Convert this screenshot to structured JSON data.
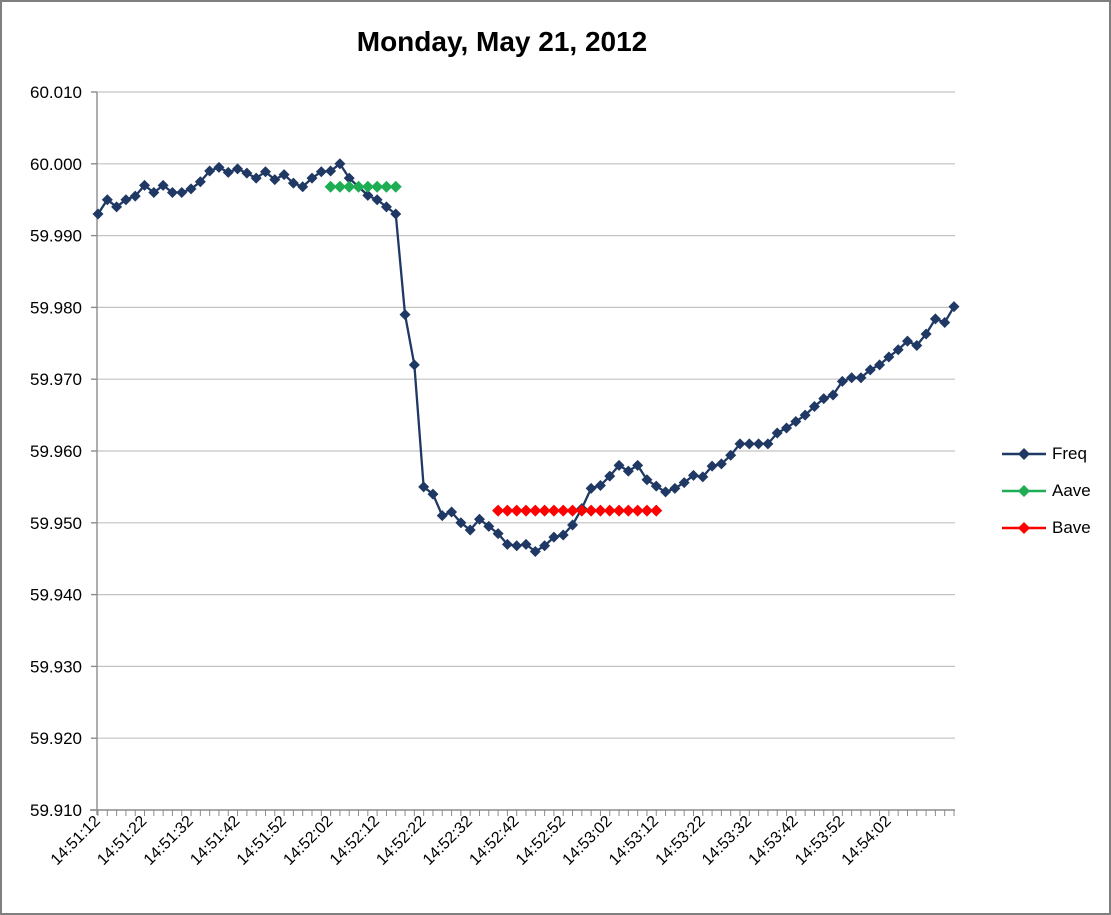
{
  "chart_data": {
    "type": "line",
    "title": "Monday, May 21, 2012",
    "x_axis": {
      "start_time": "14:51:12",
      "step_seconds": 2,
      "label_every_n_points": 5,
      "tick_labels": [
        "14:51:12",
        "14:51:22",
        "14:51:32",
        "14:51:42",
        "14:51:52",
        "14:52:02",
        "14:52:12",
        "14:52:22",
        "14:52:32",
        "14:52:42",
        "14:52:52",
        "14:53:02",
        "14:53:12",
        "14:53:22",
        "14:53:32",
        "14:53:42",
        "14:53:52",
        "14:54:02"
      ]
    },
    "y_axis": {
      "min": 59.91,
      "max": 60.01,
      "tick_step": 0.01,
      "tick_labels": [
        "60.010",
        "60.000",
        "59.990",
        "59.980",
        "59.970",
        "59.960",
        "59.950",
        "59.940",
        "59.930",
        "59.920",
        "59.910"
      ]
    },
    "grid": true,
    "legend": {
      "position": "right",
      "entries": [
        "Freq",
        "Aave",
        "Bave"
      ]
    },
    "series": [
      {
        "name": "Freq",
        "color": "#1F3864",
        "marker": "diamond",
        "start_index": 0,
        "values": [
          59.993,
          59.995,
          59.994,
          59.995,
          59.9955,
          59.997,
          59.996,
          59.997,
          59.996,
          59.996,
          59.9965,
          59.9975,
          59.999,
          59.9995,
          59.9988,
          59.9993,
          59.9987,
          59.998,
          59.9989,
          59.9978,
          59.9985,
          59.9973,
          59.9968,
          59.998,
          59.9989,
          59.999,
          60.0,
          59.998,
          59.9968,
          59.9956,
          59.995,
          59.994,
          59.993,
          59.979,
          59.972,
          59.955,
          59.954,
          59.951,
          59.9515,
          59.95,
          59.949,
          59.9505,
          59.9495,
          59.9485,
          59.947,
          59.9468,
          59.947,
          59.946,
          59.9468,
          59.948,
          59.9483,
          59.9497,
          59.952,
          59.9548,
          59.9552,
          59.9565,
          59.958,
          59.9572,
          59.958,
          59.956,
          59.9551,
          59.9543,
          59.9548,
          59.9556,
          59.9566,
          59.9564,
          59.9579,
          59.9582,
          59.9594,
          59.961,
          59.961,
          59.961,
          59.961,
          59.9625,
          59.9632,
          59.9641,
          59.965,
          59.9662,
          59.9673,
          59.9678,
          59.9697,
          59.9702,
          59.9702,
          59.9713,
          59.972,
          59.9731,
          59.9741,
          59.9753,
          59.9747,
          59.9763,
          59.9784,
          59.9779,
          59.9801
        ]
      },
      {
        "name": "Aave",
        "color": "#1FAD54",
        "marker": "diamond",
        "start_index": 25,
        "values": [
          59.9968,
          59.9968,
          59.9968,
          59.9968,
          59.9968,
          59.9968,
          59.9968,
          59.9968
        ]
      },
      {
        "name": "Bave",
        "color": "#FF0000",
        "marker": "diamond",
        "start_index": 43,
        "values": [
          59.9517,
          59.9517,
          59.9517,
          59.9517,
          59.9517,
          59.9517,
          59.9517,
          59.9517,
          59.9517,
          59.9517,
          59.9517,
          59.9517,
          59.9517,
          59.9517,
          59.9517,
          59.9517,
          59.9517,
          59.9517
        ]
      }
    ],
    "colors": {
      "axis": "#8c8c8c",
      "gridline": "#c3c3c3",
      "text": "#000000"
    }
  }
}
